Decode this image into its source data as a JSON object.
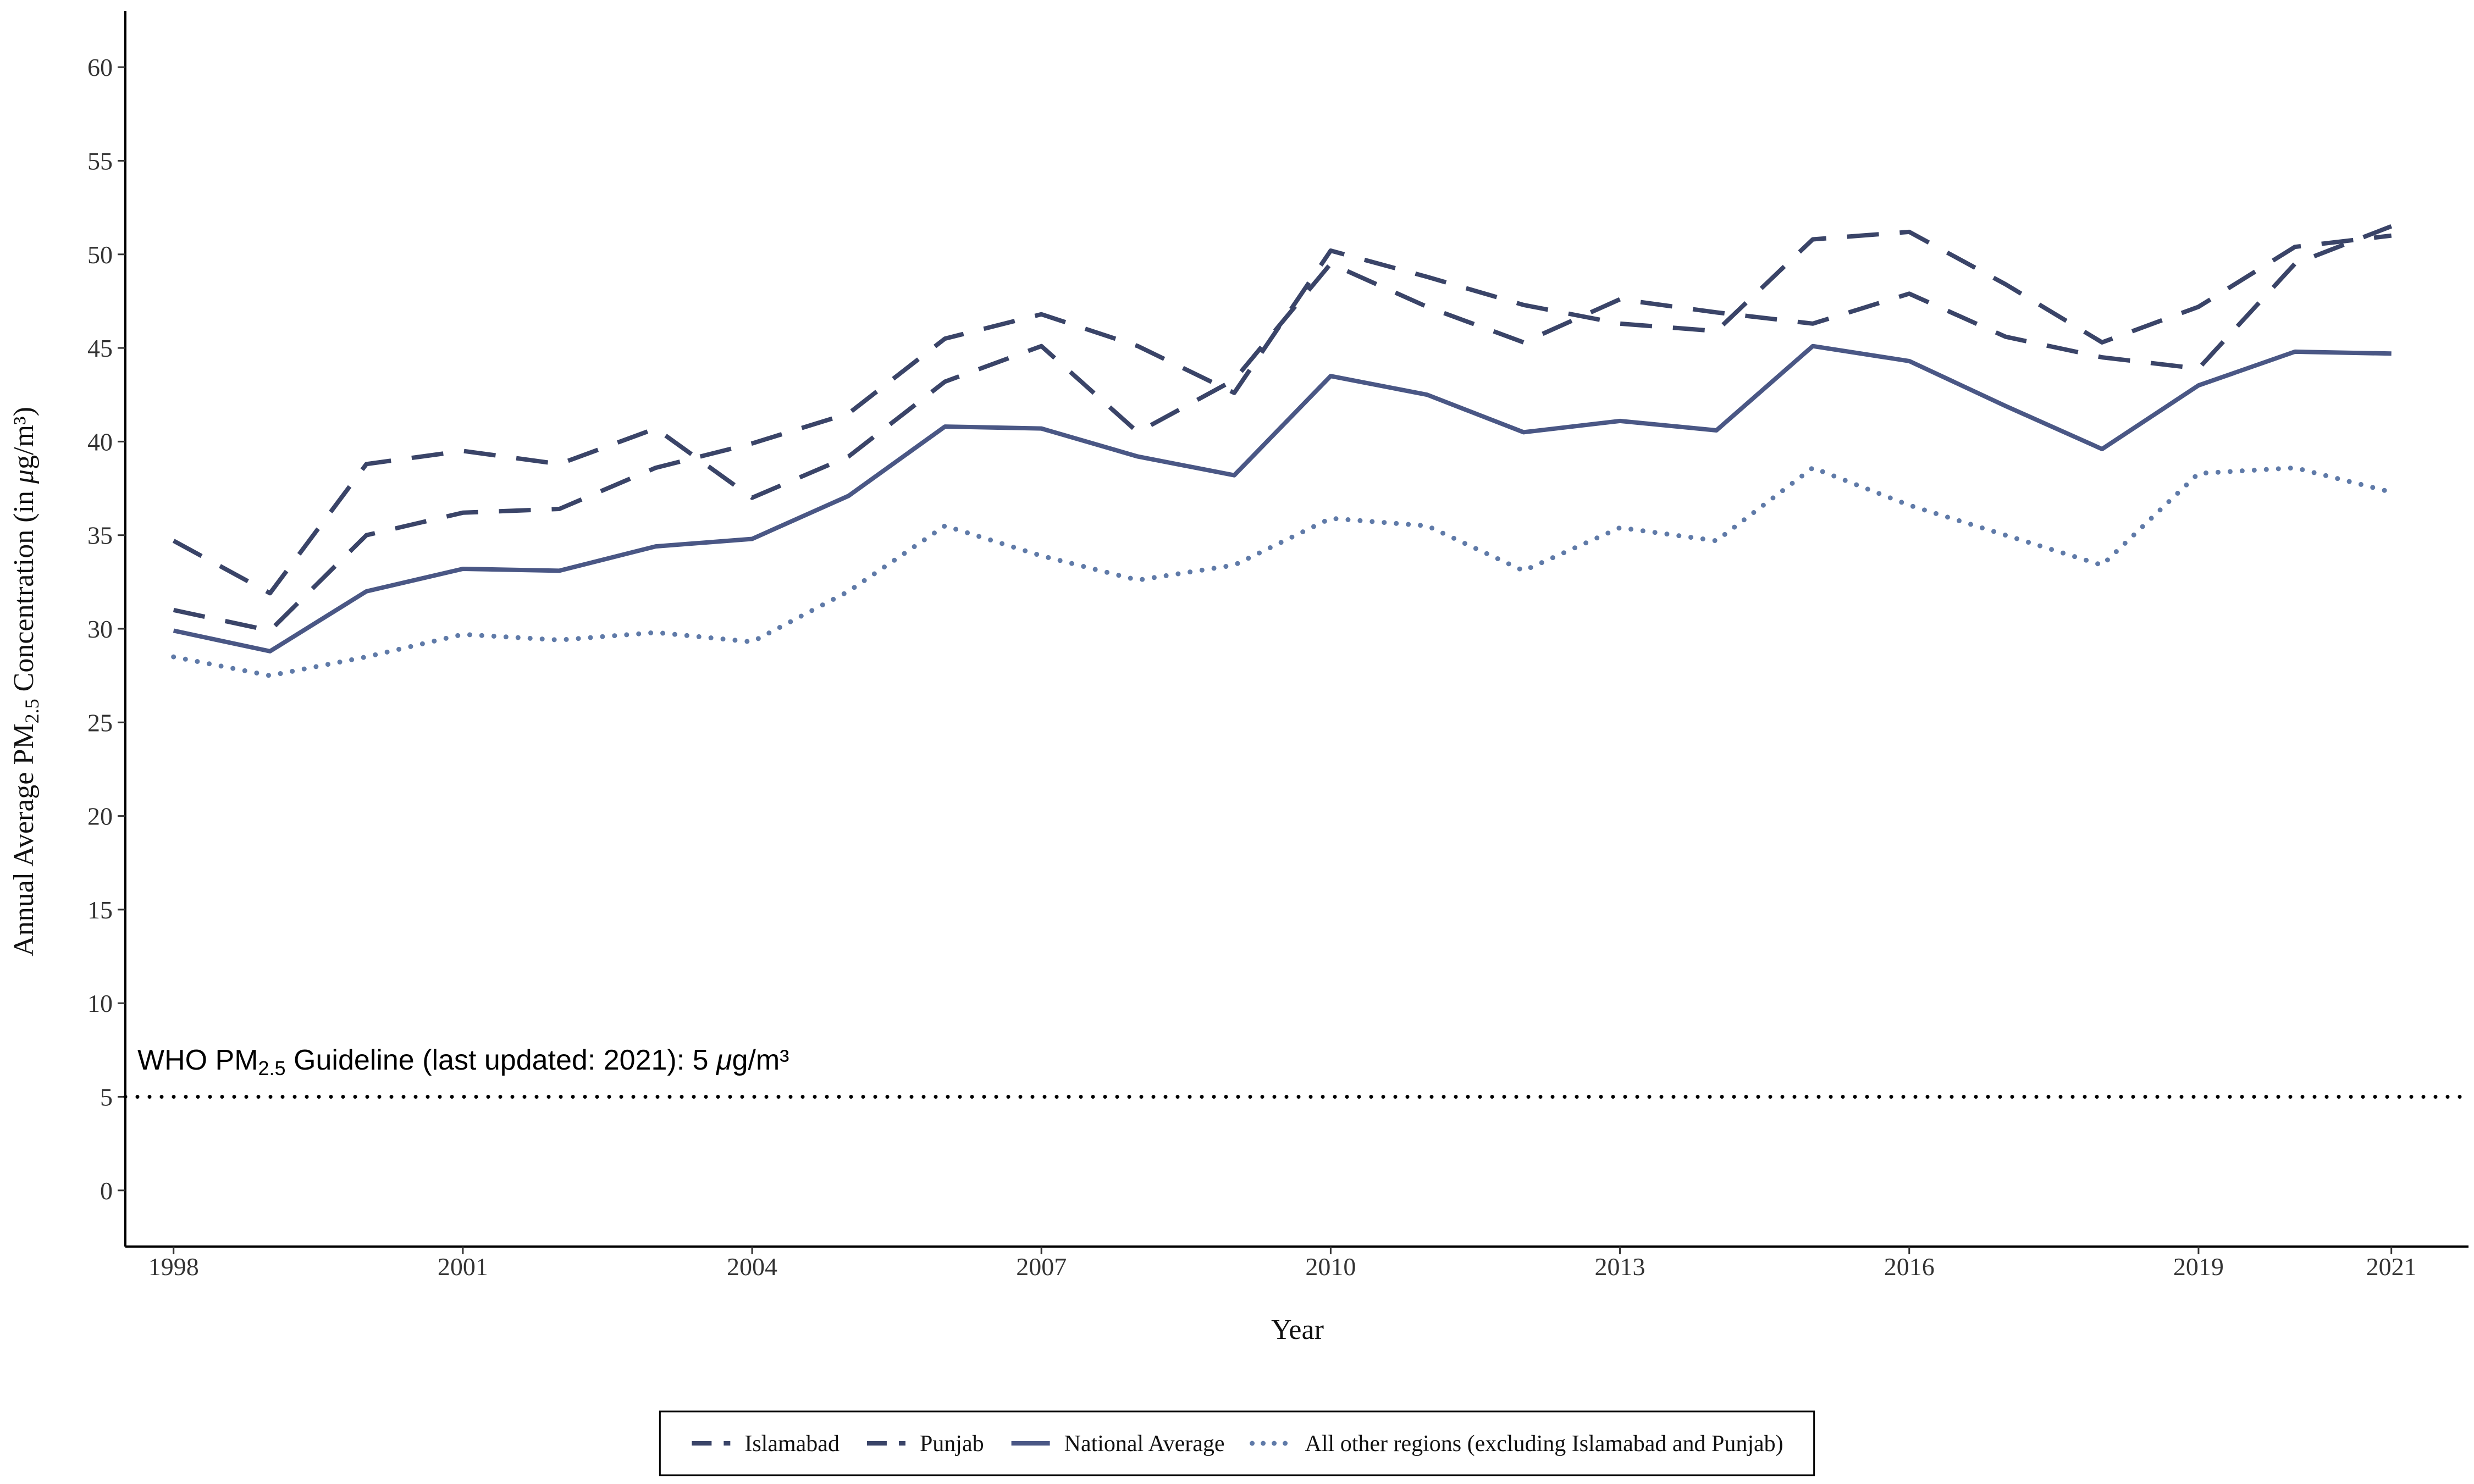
{
  "chart_data": {
    "type": "line",
    "title": "",
    "xlabel": "Year",
    "ylabel": {
      "prefix": "Annual Average PM",
      "subscript": "2.5",
      "suffix": " Concentration (in ",
      "mu": "μ",
      "unit": "g/m³)"
    },
    "x": [
      1998,
      1999,
      2000,
      2001,
      2002,
      2003,
      2004,
      2005,
      2006,
      2007,
      2008,
      2009,
      2010,
      2011,
      2012,
      2013,
      2014,
      2015,
      2016,
      2017,
      2018,
      2019,
      2020,
      2021
    ],
    "xticks": [
      "1998",
      "2001",
      "2004",
      "2007",
      "2010",
      "2013",
      "2016",
      "2019",
      "2021"
    ],
    "xtick_values": [
      1998,
      2001,
      2004,
      2007,
      2010,
      2013,
      2016,
      2019,
      2021
    ],
    "xlim": [
      1997.5,
      2021.8
    ],
    "ylim": [
      -3,
      63
    ],
    "yticks": [
      "0",
      "5",
      "10",
      "15",
      "20",
      "25",
      "30",
      "35",
      "40",
      "45",
      "50",
      "55",
      "60"
    ],
    "ytick_values": [
      0,
      5,
      10,
      15,
      20,
      25,
      30,
      35,
      40,
      45,
      50,
      55,
      60
    ],
    "grid": false,
    "legend_position": "bottom",
    "series": [
      {
        "name": "Islamabad",
        "style": "dashed",
        "color": "#3a4468",
        "values": [
          34.7,
          31.9,
          38.8,
          39.5,
          38.8,
          40.7,
          37.0,
          39.2,
          43.2,
          45.1,
          40.5,
          43.3,
          49.5,
          47.2,
          45.3,
          47.6,
          46.9,
          46.3,
          47.9,
          45.6,
          44.5,
          43.9,
          49.5,
          51.5
        ]
      },
      {
        "name": "Punjab",
        "style": "dashed",
        "color": "#3a4468",
        "values": [
          31.0,
          29.9,
          35.0,
          36.2,
          36.4,
          38.6,
          39.9,
          41.5,
          45.5,
          46.8,
          45.1,
          42.6,
          50.2,
          48.8,
          47.3,
          46.3,
          45.9,
          50.8,
          51.2,
          48.4,
          45.3,
          47.2,
          50.4,
          51.0
        ]
      },
      {
        "name": "National Average",
        "style": "solid",
        "color": "#4a5785",
        "values": [
          29.9,
          28.8,
          32.0,
          33.2,
          33.1,
          34.4,
          34.8,
          37.1,
          40.8,
          40.7,
          39.2,
          38.2,
          43.5,
          42.5,
          40.5,
          41.1,
          40.6,
          45.1,
          44.3,
          41.9,
          39.6,
          43.0,
          44.8,
          44.7
        ]
      },
      {
        "name": "All other regions (excluding Islamabad and Punjab)",
        "style": "dotted",
        "color": "#5f7aa8",
        "values": [
          28.5,
          27.5,
          28.5,
          29.7,
          29.4,
          29.8,
          29.3,
          32.0,
          35.5,
          33.9,
          32.6,
          33.4,
          35.9,
          35.5,
          33.1,
          35.4,
          34.7,
          38.6,
          36.6,
          35.0,
          33.4,
          38.3,
          38.6,
          37.3
        ]
      }
    ],
    "reference_line": {
      "value": 5,
      "color": "#000000",
      "label": {
        "prefix": "WHO PM",
        "subscript": "2.5",
        "suffix": " Guideline (last updated: 2021): 5 ",
        "mu": "μ",
        "unit": "g/m³"
      }
    }
  }
}
